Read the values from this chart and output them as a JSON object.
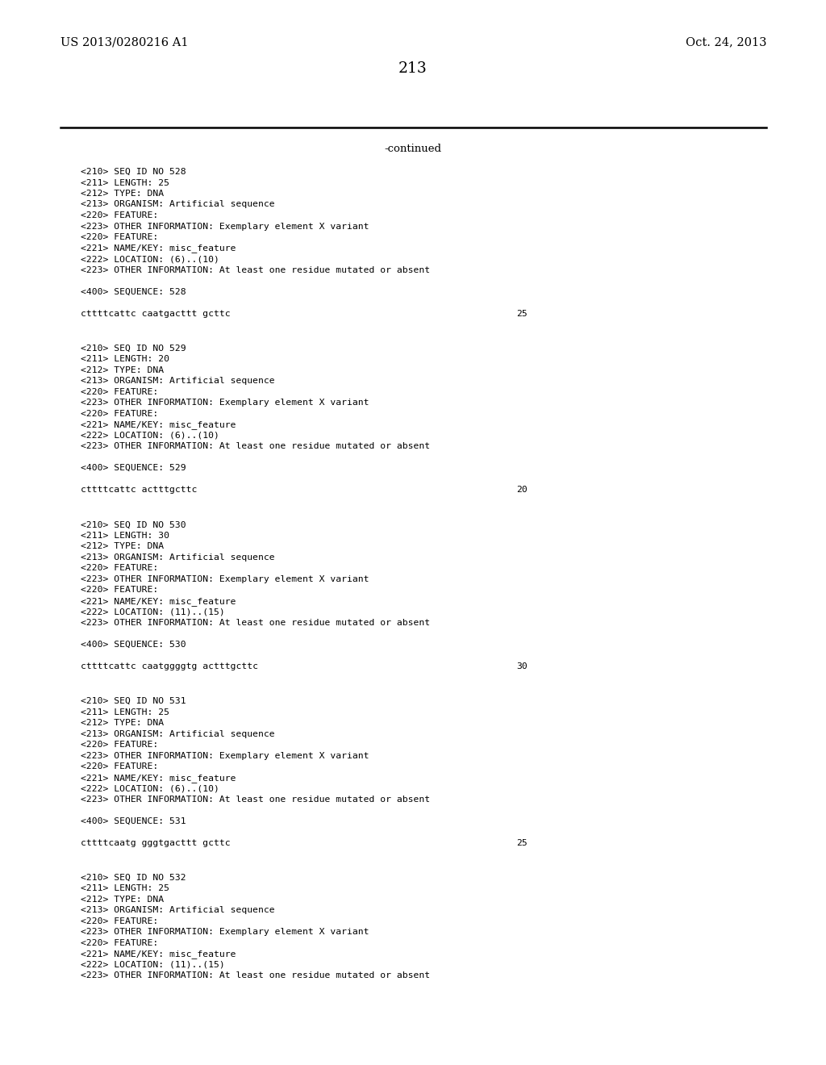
{
  "background_color": "#ffffff",
  "top_left_text": "US 2013/0280216 A1",
  "top_right_text": "Oct. 24, 2013",
  "page_number": "213",
  "continued_text": "-continued",
  "monospace_fontsize": 8.2,
  "header_fontsize": 10.5,
  "page_num_fontsize": 13.5,
  "continued_fontsize": 9.5,
  "sections": [
    {
      "lines": [
        "<210> SEQ ID NO 528",
        "<211> LENGTH: 25",
        "<212> TYPE: DNA",
        "<213> ORGANISM: Artificial sequence",
        "<220> FEATURE:",
        "<223> OTHER INFORMATION: Exemplary element X variant",
        "<220> FEATURE:",
        "<221> NAME/KEY: misc_feature",
        "<222> LOCATION: (6)..(10)",
        "<223> OTHER INFORMATION: At least one residue mutated or absent"
      ],
      "sequence_label": "<400> SEQUENCE: 528",
      "sequence_data": "cttttcattc caatgacttt gcttc",
      "sequence_num": "25"
    },
    {
      "lines": [
        "<210> SEQ ID NO 529",
        "<211> LENGTH: 20",
        "<212> TYPE: DNA",
        "<213> ORGANISM: Artificial sequence",
        "<220> FEATURE:",
        "<223> OTHER INFORMATION: Exemplary element X variant",
        "<220> FEATURE:",
        "<221> NAME/KEY: misc_feature",
        "<222> LOCATION: (6)..(10)",
        "<223> OTHER INFORMATION: At least one residue mutated or absent"
      ],
      "sequence_label": "<400> SEQUENCE: 529",
      "sequence_data": "cttttcattc actttgcttc",
      "sequence_num": "20"
    },
    {
      "lines": [
        "<210> SEQ ID NO 530",
        "<211> LENGTH: 30",
        "<212> TYPE: DNA",
        "<213> ORGANISM: Artificial sequence",
        "<220> FEATURE:",
        "<223> OTHER INFORMATION: Exemplary element X variant",
        "<220> FEATURE:",
        "<221> NAME/KEY: misc_feature",
        "<222> LOCATION: (11)..(15)",
        "<223> OTHER INFORMATION: At least one residue mutated or absent"
      ],
      "sequence_label": "<400> SEQUENCE: 530",
      "sequence_data": "cttttcattc caatggggtg actttgcttc",
      "sequence_num": "30"
    },
    {
      "lines": [
        "<210> SEQ ID NO 531",
        "<211> LENGTH: 25",
        "<212> TYPE: DNA",
        "<213> ORGANISM: Artificial sequence",
        "<220> FEATURE:",
        "<223> OTHER INFORMATION: Exemplary element X variant",
        "<220> FEATURE:",
        "<221> NAME/KEY: misc_feature",
        "<222> LOCATION: (6)..(10)",
        "<223> OTHER INFORMATION: At least one residue mutated or absent"
      ],
      "sequence_label": "<400> SEQUENCE: 531",
      "sequence_data": "cttttcaatg gggtgacttt gcttc",
      "sequence_num": "25"
    },
    {
      "lines": [
        "<210> SEQ ID NO 532",
        "<211> LENGTH: 25",
        "<212> TYPE: DNA",
        "<213> ORGANISM: Artificial sequence",
        "<220> FEATURE:",
        "<223> OTHER INFORMATION: Exemplary element X variant",
        "<220> FEATURE:",
        "<221> NAME/KEY: misc_feature",
        "<222> LOCATION: (11)..(15)",
        "<223> OTHER INFORMATION: At least one residue mutated or absent"
      ],
      "sequence_label": null,
      "sequence_data": null,
      "sequence_num": null
    }
  ]
}
